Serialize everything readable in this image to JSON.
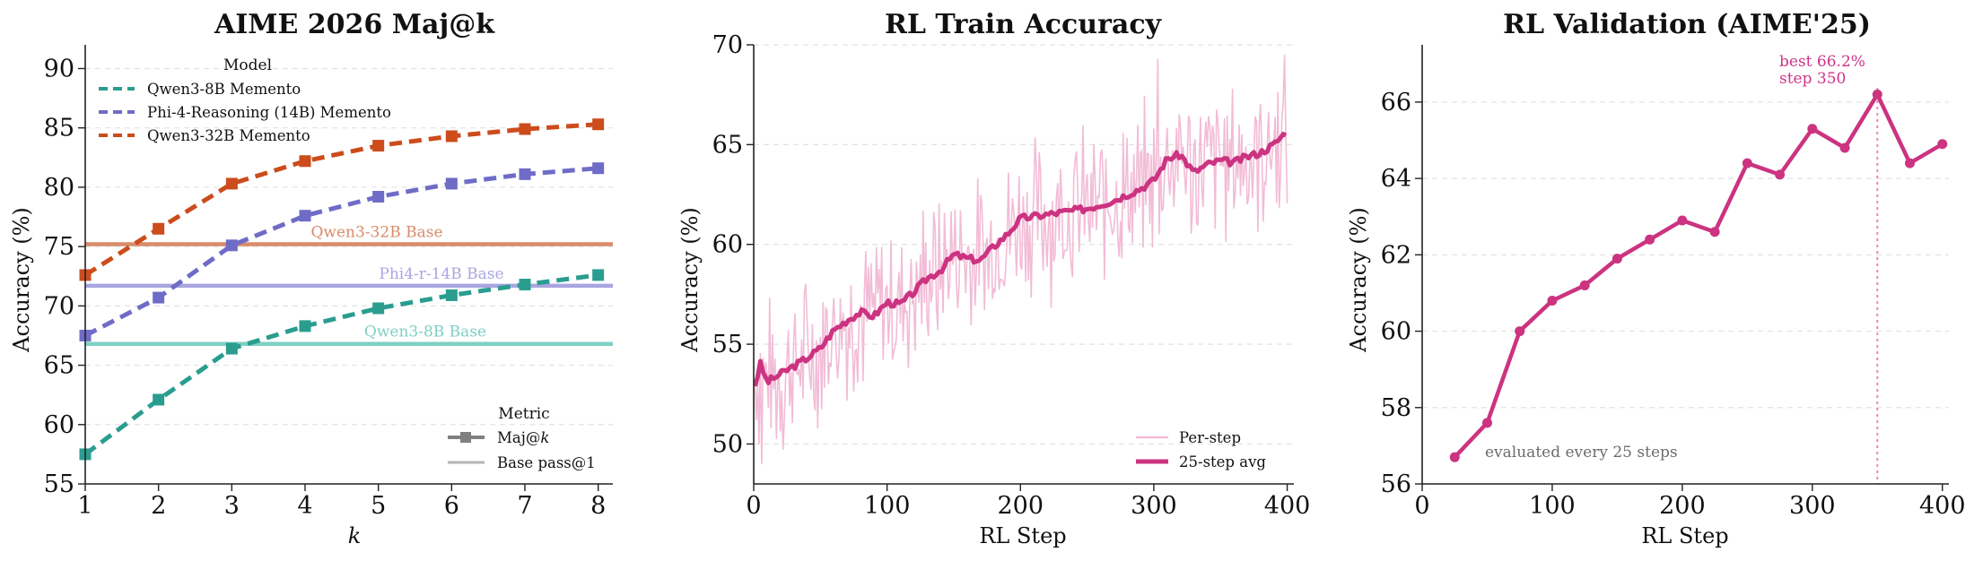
{
  "chart_data": [
    {
      "type": "line",
      "title": "AIME 2026 Maj@k",
      "xlabel": "k",
      "ylabel": "Accuracy (%)",
      "xlim": [
        1,
        8.2
      ],
      "ylim": [
        55,
        92
      ],
      "xticks": [
        1,
        2,
        3,
        4,
        5,
        6,
        7,
        8
      ],
      "yticks": [
        55,
        60,
        65,
        70,
        75,
        80,
        85,
        90
      ],
      "grid": "horizontal dashed",
      "x": [
        1,
        2,
        3,
        4,
        5,
        6,
        7,
        8
      ],
      "series": [
        {
          "name": "Qwen3-8B Memento",
          "color": "#2a9d8f",
          "values": [
            57.5,
            62.1,
            66.4,
            68.3,
            69.8,
            70.9,
            71.8,
            72.6
          ]
        },
        {
          "name": "Phi-4-Reasoning (14B) Memento",
          "color": "#6f6cc7",
          "values": [
            67.5,
            70.7,
            75.1,
            77.6,
            79.2,
            80.3,
            81.1,
            81.6
          ]
        },
        {
          "name": "Qwen3-32B Memento",
          "color": "#cc4c1c",
          "values": [
            72.6,
            76.5,
            80.3,
            82.2,
            83.5,
            84.3,
            84.9,
            85.3
          ]
        }
      ],
      "baselines": [
        {
          "label": "Qwen3-32B Base",
          "value": 75.2,
          "color": "#d98b6a"
        },
        {
          "label": "Phi4-r-14B Base",
          "value": 71.7,
          "color": "#a9a5e0"
        },
        {
          "label": "Qwen3-8B Base",
          "value": 66.8,
          "color": "#7fcfc4"
        }
      ],
      "legend_model": {
        "title": "Model",
        "placement": "top-left"
      },
      "legend_metric": {
        "title": "Metric",
        "items": [
          "Maj@k",
          "Base pass@1"
        ],
        "placement": "bottom-right"
      }
    },
    {
      "type": "line",
      "title": "RL Train Accuracy",
      "xlabel": "RL Step",
      "ylabel": "Accuracy (%)",
      "xlim": [
        0,
        405
      ],
      "ylim": [
        48,
        70
      ],
      "xticks": [
        0,
        100,
        200,
        300,
        400
      ],
      "yticks": [
        50,
        55,
        60,
        65,
        70
      ],
      "grid": "horizontal dashed",
      "series": [
        {
          "name": "Per-step",
          "color": "#f2bcd6",
          "noise_amplitude": 3.2
        },
        {
          "name": "25-step avg",
          "color": "#cc3380",
          "x": [
            0,
            5,
            10,
            20,
            30,
            40,
            50,
            60,
            70,
            80,
            90,
            100,
            110,
            120,
            130,
            140,
            150,
            160,
            170,
            180,
            190,
            200,
            210,
            220,
            230,
            240,
            250,
            260,
            270,
            280,
            290,
            300,
            310,
            320,
            330,
            340,
            350,
            360,
            370,
            380,
            390,
            400
          ],
          "values": [
            52.7,
            54.0,
            53.1,
            53.5,
            53.9,
            54.3,
            54.8,
            55.7,
            56.2,
            56.6,
            56.4,
            57.1,
            57.0,
            57.6,
            58.3,
            58.7,
            59.5,
            59.3,
            59.2,
            59.9,
            60.5,
            61.3,
            61.4,
            61.5,
            61.6,
            61.7,
            61.8,
            62.0,
            62.2,
            62.5,
            62.8,
            63.2,
            64.3,
            64.5,
            63.6,
            64.0,
            64.2,
            64.1,
            64.4,
            64.6,
            65.0,
            65.7
          ]
        }
      ],
      "legend": {
        "placement": "bottom-right",
        "items": [
          "Per-step",
          "25-step avg"
        ]
      }
    },
    {
      "type": "line",
      "title": "RL Validation (AIME'25)",
      "xlabel": "RL Step",
      "ylabel": "Accuracy (%)",
      "xlim": [
        0,
        405
      ],
      "ylim": [
        56,
        67.5
      ],
      "xticks": [
        0,
        100,
        200,
        300,
        400
      ],
      "yticks": [
        56,
        58,
        60,
        62,
        64,
        66
      ],
      "grid": "horizontal dashed",
      "series": [
        {
          "name": "",
          "color": "#cc3380",
          "x": [
            25,
            50,
            75,
            100,
            125,
            150,
            175,
            200,
            225,
            250,
            275,
            300,
            325,
            350,
            375,
            400
          ],
          "values": [
            56.7,
            57.6,
            60.0,
            60.8,
            61.2,
            61.9,
            62.4,
            62.9,
            62.6,
            64.4,
            64.1,
            65.3,
            64.8,
            66.2,
            64.4,
            64.9
          ]
        }
      ],
      "best_line_x": 350,
      "annotations": {
        "best_line1": "best 66.2%",
        "best_line2": "step 350",
        "note": "evaluated every 25 steps"
      }
    }
  ]
}
